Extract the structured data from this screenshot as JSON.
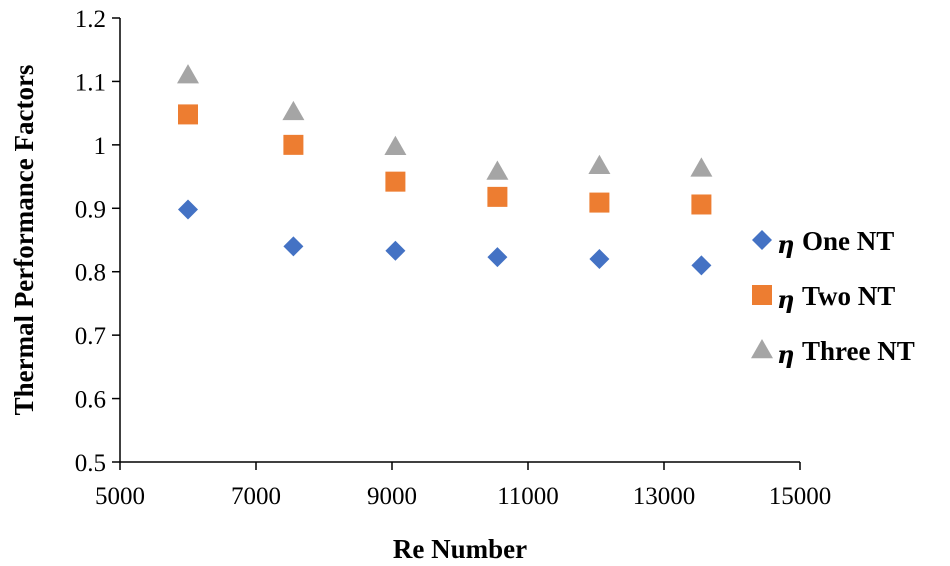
{
  "chart_data": {
    "type": "scatter",
    "title": "",
    "xlabel": "Re Number",
    "ylabel": "Thermal Performance Factors",
    "xlim": [
      5000,
      15000
    ],
    "ylim": [
      0.5,
      1.2
    ],
    "xticks": [
      5000,
      7000,
      9000,
      11000,
      13000,
      15000
    ],
    "yticks": [
      0.5,
      0.6,
      0.7,
      0.8,
      0.9,
      1,
      1.1,
      1.2
    ],
    "xtick_labels": [
      "5000",
      "7000",
      "9000",
      "11000",
      "13000",
      "15000"
    ],
    "ytick_labels": [
      "0.5",
      "0.6",
      "0.7",
      "0.8",
      "0.9",
      "1",
      "1.1",
      "1.2"
    ],
    "grid": false,
    "legend_position": "right",
    "series": [
      {
        "symbol": "η",
        "name": "One NT",
        "marker": "diamond",
        "color": "#4472C4",
        "x": [
          6000,
          7550,
          9050,
          10550,
          12050,
          13550
        ],
        "y": [
          0.898,
          0.84,
          0.833,
          0.823,
          0.82,
          0.81
        ]
      },
      {
        "symbol": "η",
        "name": "Two NT",
        "marker": "square",
        "color": "#ED7D31",
        "x": [
          6000,
          7550,
          9050,
          10550,
          12050,
          13550
        ],
        "y": [
          1.048,
          1.0,
          0.942,
          0.918,
          0.909,
          0.906
        ]
      },
      {
        "symbol": "η",
        "name": "Three NT",
        "marker": "triangle",
        "color": "#A5A5A5",
        "x": [
          6000,
          7550,
          9050,
          10550,
          12050,
          13550
        ],
        "y": [
          1.11,
          1.052,
          0.997,
          0.958,
          0.967,
          0.963
        ]
      }
    ]
  }
}
